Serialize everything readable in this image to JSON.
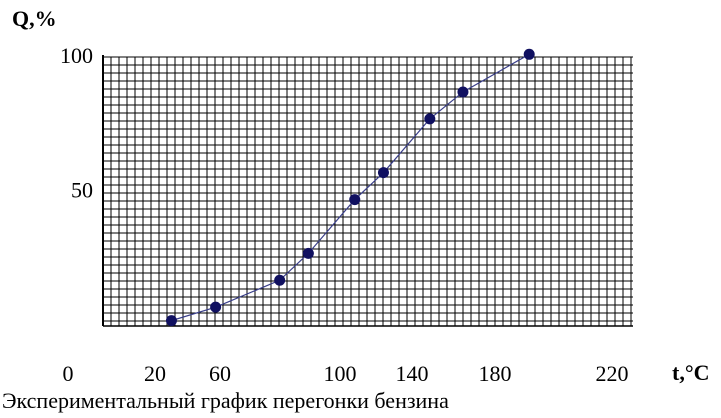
{
  "chart_data": {
    "type": "line",
    "title": "Экспериментальный график перегонки бензина",
    "xlabel": "t,°C",
    "ylabel": "Q,%",
    "xlim": [
      0,
      240
    ],
    "ylim": [
      0,
      100
    ],
    "x_tick_labels": [
      "0",
      "20",
      "60",
      "100",
      "140",
      "180",
      "220"
    ],
    "y_tick_labels": [
      "100",
      "50"
    ],
    "grid": true,
    "series": [
      {
        "points": [
          {
            "x": 31,
            "y": 2
          },
          {
            "x": 51,
            "y": 7
          },
          {
            "x": 80,
            "y": 17
          },
          {
            "x": 93,
            "y": 27
          },
          {
            "x": 114,
            "y": 47
          },
          {
            "x": 127,
            "y": 57
          },
          {
            "x": 148,
            "y": 77
          },
          {
            "x": 163,
            "y": 87
          },
          {
            "x": 193,
            "y": 101
          }
        ],
        "marker_color": "#101060",
        "line_color": "#3a3f8a"
      }
    ]
  }
}
